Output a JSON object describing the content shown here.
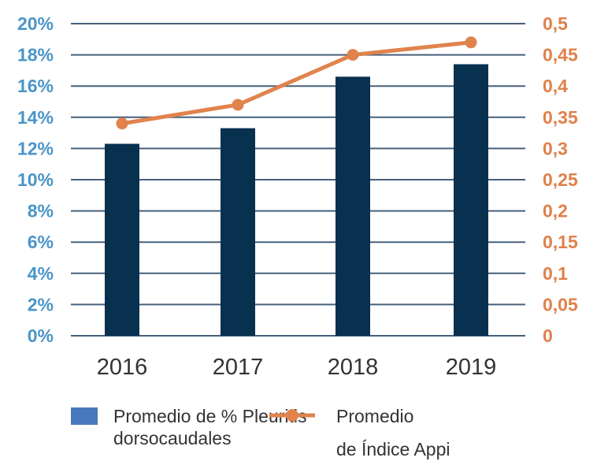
{
  "chart_data": {
    "type": "bar",
    "categories": [
      "2016",
      "2017",
      "2018",
      "2019"
    ],
    "series": [
      {
        "name": "Promedio de % Pleuritis dorsocaudales",
        "type": "bar",
        "axis": "left",
        "values": [
          12.3,
          13.3,
          16.6,
          17.4
        ],
        "color": "#08304f"
      },
      {
        "name": "Promedio de Índice Appi",
        "type": "line",
        "axis": "right",
        "values": [
          0.34,
          0.37,
          0.45,
          0.47
        ],
        "color": "#e0834d"
      }
    ],
    "y_left": {
      "ylim": [
        0,
        20
      ],
      "ticks": [
        "0%",
        "2%",
        "4%",
        "6%",
        "8%",
        "10%",
        "12%",
        "14%",
        "16%",
        "18%",
        "20%"
      ],
      "color": "#4a95c8"
    },
    "y_right": {
      "ylim": [
        0,
        0.5
      ],
      "ticks": [
        "0",
        "0,05",
        "0,1",
        "0,15",
        "0,2",
        "0,25",
        "0,3",
        "0,35",
        "0,4",
        "0,45",
        "0,5"
      ],
      "color": "#e0804a"
    },
    "grid": true,
    "legend": {
      "placement": "bottom",
      "bar_label_line1": "Promedio de % Pleuritis",
      "bar_label_line2": "dorsocaudales",
      "bar_swatch_color": "#4a78be",
      "line_label_line1": "Promedio",
      "line_label_line2": "de Índice Appi"
    }
  }
}
